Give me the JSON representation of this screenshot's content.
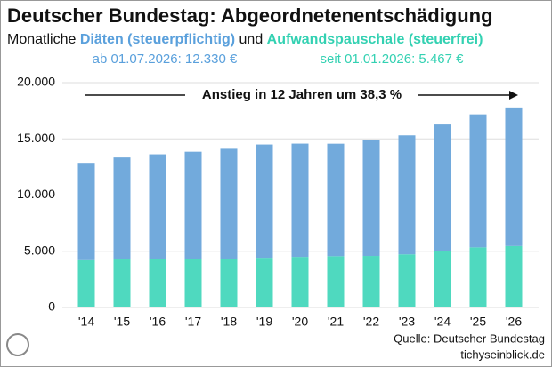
{
  "chart_data": {
    "type": "stacked_bar",
    "title": "Deutscher Bundestag: Abgeordnetenentschädigung",
    "subtitle_prefix": "Monatliche",
    "subtitle_join": "und",
    "annotations": [
      "ab 01.07.2026: 12.330 €",
      "seit 01.01.2026: 5.467 €",
      "Anstieg in 12 Jahren um 38,3 %"
    ],
    "source": "Quelle: Deutscher Bundestag",
    "website": "tichyseinblick.de",
    "categories": [
      "'14",
      "'15",
      "'16",
      "'17",
      "'18",
      "'19",
      "'20",
      "'21",
      "'22",
      "'23",
      "'24",
      "'25",
      "'26"
    ],
    "series": [
      {
        "name": "Aufwandspauschale (steuerfrei)",
        "color": "#4fd9bf",
        "values": [
          4204,
          4267,
          4305,
          4318,
          4339,
          4418,
          4497,
          4560,
          4583,
          4725,
          5051,
          5349,
          5467
        ]
      },
      {
        "name": "Diäten (steuerpflichtig)",
        "color": "#72aadc",
        "values": [
          8667,
          9082,
          9327,
          9542,
          9780,
          10083,
          10083,
          10012,
          10323,
          10591,
          11227,
          11833,
          12330
        ]
      }
    ],
    "ylim": [
      0,
      20000
    ],
    "yticks": [
      0,
      {
        "value": 5000,
        "label": "5.000"
      },
      {
        "value": 10000,
        "label": "10.000"
      },
      {
        "value": 15000,
        "label": "15.000"
      },
      {
        "value": 20000,
        "label": "20.000"
      }
    ],
    "grid": true
  }
}
